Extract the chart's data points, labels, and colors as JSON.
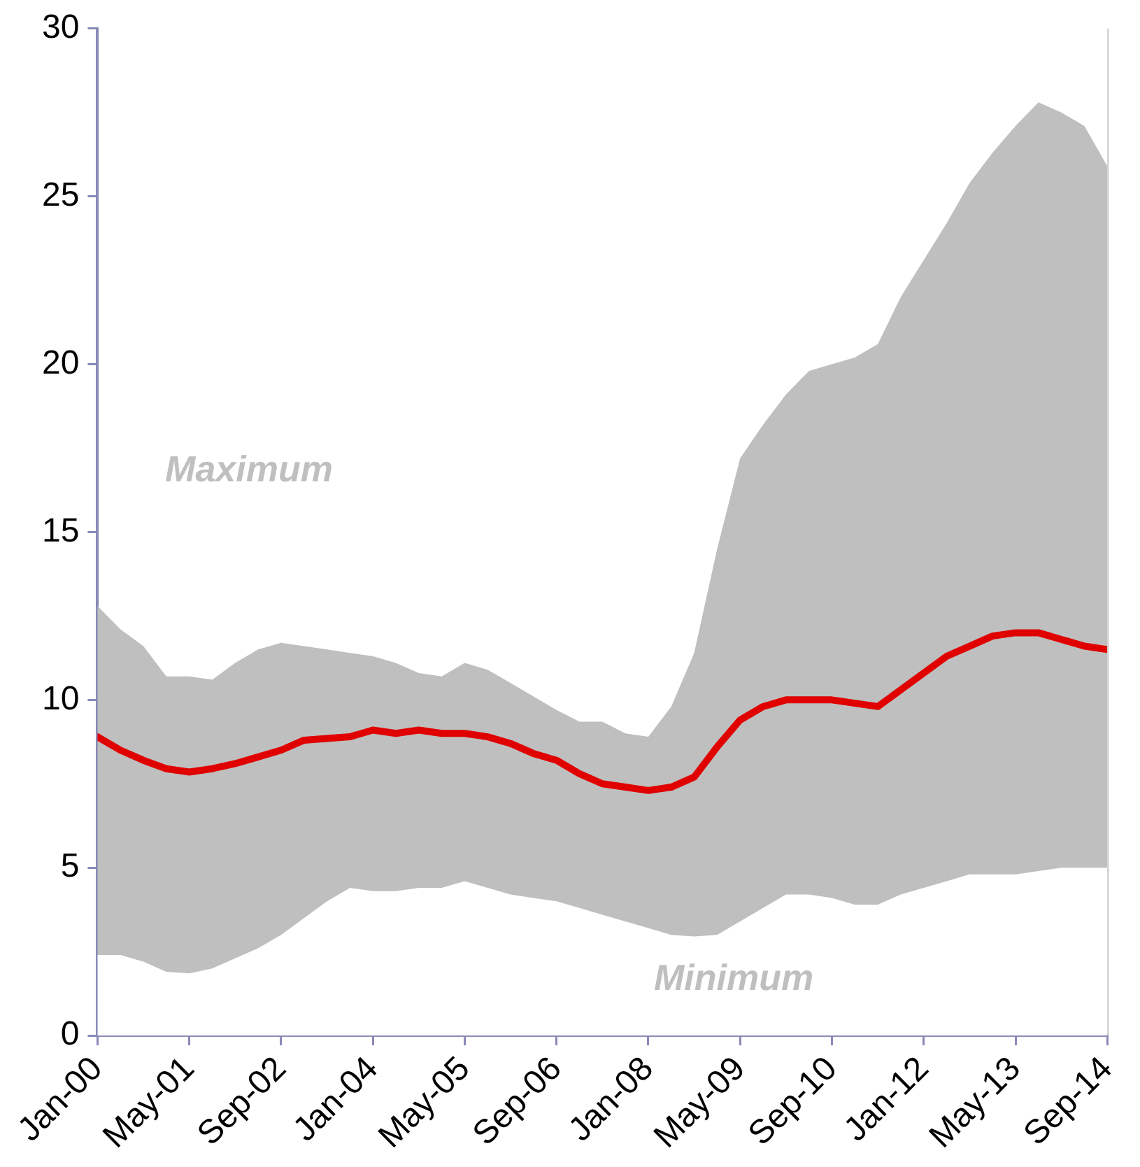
{
  "chart_data": {
    "type": "line",
    "x": [
      "2000-01",
      "2000-05",
      "2000-09",
      "2001-01",
      "2001-05",
      "2001-09",
      "2002-01",
      "2002-05",
      "2002-09",
      "2003-01",
      "2003-05",
      "2003-09",
      "2004-01",
      "2004-05",
      "2004-09",
      "2005-01",
      "2005-05",
      "2005-09",
      "2006-01",
      "2006-05",
      "2006-09",
      "2007-01",
      "2007-05",
      "2007-09",
      "2008-01",
      "2008-05",
      "2008-09",
      "2009-01",
      "2009-05",
      "2009-09",
      "2010-01",
      "2010-05",
      "2010-09",
      "2011-01",
      "2011-05",
      "2011-09",
      "2012-01",
      "2012-05",
      "2012-09",
      "2013-01",
      "2013-05",
      "2013-09",
      "2014-01",
      "2014-05",
      "2014-09"
    ],
    "series": [
      {
        "type": "area",
        "color": "#bfbfbf",
        "values": [
          12.8,
          12.1,
          11.6,
          10.7,
          10.7,
          10.6,
          11.1,
          11.5,
          11.7,
          11.6,
          11.5,
          11.4,
          11.3,
          11.1,
          10.8,
          10.7,
          11.1,
          10.9,
          10.5,
          10.1,
          9.7,
          9.35,
          9.35,
          9.0,
          8.9,
          9.8,
          11.4,
          14.5,
          17.2,
          18.2,
          19.1,
          19.8,
          20.0,
          20.2,
          20.6,
          22.0,
          23.1,
          24.2,
          25.4,
          26.3,
          27.1,
          27.8,
          27.5,
          27.1,
          25.9
        ]
      },
      {
        "type": "area",
        "color": "#ffffff",
        "values": [
          2.4,
          2.4,
          2.2,
          1.9,
          1.85,
          2.0,
          2.3,
          2.6,
          3.0,
          3.5,
          4.0,
          4.4,
          4.3,
          4.3,
          4.4,
          4.4,
          4.6,
          4.4,
          4.2,
          4.1,
          4.0,
          3.8,
          3.6,
          3.4,
          3.2,
          3.0,
          2.95,
          3.0,
          3.4,
          3.8,
          4.2,
          4.2,
          4.1,
          3.9,
          3.9,
          4.2,
          4.4,
          4.6,
          4.8,
          4.8,
          4.8,
          4.9,
          5.0,
          5.0,
          5.0
        ]
      },
      {
        "color": "#e00000",
        "values": [
          8.9,
          8.5,
          8.2,
          7.95,
          7.85,
          7.95,
          8.1,
          8.3,
          8.5,
          8.8,
          8.85,
          8.9,
          9.1,
          9.0,
          9.1,
          9.0,
          9.0,
          8.9,
          8.7,
          8.4,
          8.2,
          7.8,
          7.5,
          7.4,
          7.3,
          7.4,
          7.7,
          8.6,
          9.4,
          9.8,
          10.0,
          10.0,
          10.0,
          9.9,
          9.8,
          10.3,
          10.8,
          11.3,
          11.6,
          11.9,
          12.0,
          12.0,
          11.8,
          11.6,
          11.5
        ]
      }
    ],
    "annotations": [
      "Maximum",
      "Minimum"
    ],
    "xlim": [
      "2000-01",
      "2014-09"
    ],
    "xticks": [
      {
        "value": "2000-01",
        "label": "Jan-00"
      },
      {
        "value": "2001-05",
        "label": "May-01"
      },
      {
        "value": "2002-09",
        "label": "Sep-02"
      },
      {
        "value": "2004-01",
        "label": "Jan-04"
      },
      {
        "value": "2005-05",
        "label": "May-05"
      },
      {
        "value": "2006-09",
        "label": "Sep-06"
      },
      {
        "value": "2008-01",
        "label": "Jan-08"
      },
      {
        "value": "2009-05",
        "label": "May-09"
      },
      {
        "value": "2010-09",
        "label": "Sep-10"
      },
      {
        "value": "2012-01",
        "label": "Jan-12"
      },
      {
        "value": "2013-05",
        "label": "May-13"
      },
      {
        "value": "2014-09",
        "label": "Sep-14"
      }
    ],
    "ylim": [
      0,
      30
    ],
    "yticks": [
      0,
      5,
      10,
      15,
      20,
      25,
      30
    ],
    "grid": false,
    "legend": false,
    "marker": "none",
    "line_style": "solid"
  }
}
